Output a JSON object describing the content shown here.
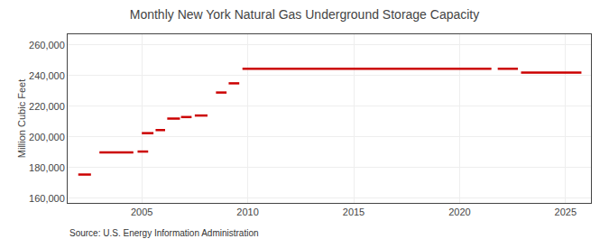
{
  "chart_data": {
    "type": "segments",
    "title": "Monthly New York Natural Gas Underground Storage Capacity",
    "ylabel": "Million Cubic Feet",
    "source": "Source: U.S. Energy Information Administration",
    "color": "#cc0000",
    "grid": true,
    "xlim": [
      2001.5,
      2026.2
    ],
    "ylim": [
      157000,
      267000
    ],
    "xticks": [
      2005,
      2010,
      2015,
      2020,
      2025
    ],
    "yticks": [
      {
        "value": 160000,
        "label": "160,000"
      },
      {
        "value": 180000,
        "label": "180,000"
      },
      {
        "value": 200000,
        "label": "200,000"
      },
      {
        "value": 220000,
        "label": "220,000"
      },
      {
        "value": 240000,
        "label": "240,000"
      },
      {
        "value": 260000,
        "label": "260,000"
      }
    ],
    "segments": [
      {
        "x_start": 2002.0,
        "x_end": 2002.6,
        "y": 175500
      },
      {
        "x_start": 2003.0,
        "x_end": 2004.6,
        "y": 190000
      },
      {
        "x_start": 2004.8,
        "x_end": 2005.3,
        "y": 190500
      },
      {
        "x_start": 2005.0,
        "x_end": 2005.55,
        "y": 202500
      },
      {
        "x_start": 2005.65,
        "x_end": 2006.1,
        "y": 204500
      },
      {
        "x_start": 2006.2,
        "x_end": 2006.8,
        "y": 212000
      },
      {
        "x_start": 2006.85,
        "x_end": 2007.35,
        "y": 213000
      },
      {
        "x_start": 2007.5,
        "x_end": 2008.1,
        "y": 214000
      },
      {
        "x_start": 2008.5,
        "x_end": 2009.0,
        "y": 229000
      },
      {
        "x_start": 2009.1,
        "x_end": 2009.6,
        "y": 235000
      },
      {
        "x_start": 2009.75,
        "x_end": 2021.5,
        "y": 244500
      },
      {
        "x_start": 2021.8,
        "x_end": 2022.75,
        "y": 244500
      },
      {
        "x_start": 2022.9,
        "x_end": 2025.75,
        "y": 242000
      }
    ]
  }
}
